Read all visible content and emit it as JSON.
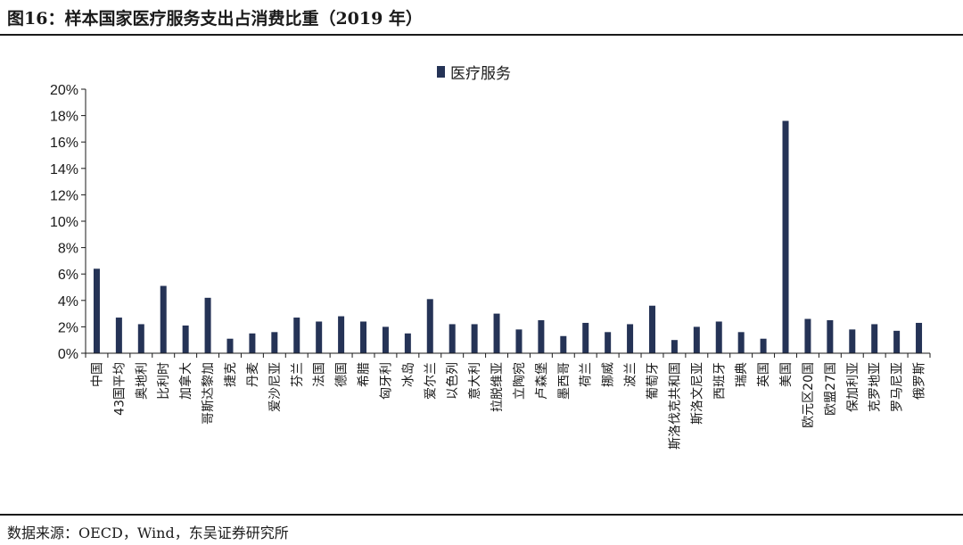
{
  "header": {
    "title": "图16：样本国家医疗服务支出占消费比重（2019 年）"
  },
  "footer": {
    "source": "数据来源：OECD，Wind，东吴证券研究所"
  },
  "colors": {
    "bar": "#253356",
    "axis": "#1a1a1a"
  },
  "chart_data": {
    "type": "bar",
    "title": "",
    "xlabel": "",
    "ylabel": "",
    "ylim": [
      0,
      0.2
    ],
    "yticks": [
      "0%",
      "2%",
      "4%",
      "6%",
      "8%",
      "10%",
      "12%",
      "14%",
      "16%",
      "18%",
      "20%"
    ],
    "grid": false,
    "legend_position": "top-center",
    "categories": [
      "中国",
      "43国平均",
      "奥地利",
      "比利时",
      "加拿大",
      "哥斯达黎加",
      "捷克",
      "丹麦",
      "爱沙尼亚",
      "芬兰",
      "法国",
      "德国",
      "希腊",
      "匈牙利",
      "冰岛",
      "爱尔兰",
      "以色列",
      "意大利",
      "拉脱维亚",
      "立陶宛",
      "卢森堡",
      "墨西哥",
      "荷兰",
      "挪威",
      "波兰",
      "葡萄牙",
      "斯洛伐克共和国",
      "斯洛文尼亚",
      "西班牙",
      "瑞典",
      "英国",
      "美国",
      "欧元区20国",
      "欧盟27国",
      "保加利亚",
      "克罗地亚",
      "罗马尼亚",
      "俄罗斯"
    ],
    "series": [
      {
        "name": "医疗服务",
        "values": [
          0.064,
          0.027,
          0.022,
          0.051,
          0.021,
          0.042,
          0.011,
          0.015,
          0.016,
          0.027,
          0.024,
          0.028,
          0.024,
          0.02,
          0.015,
          0.041,
          0.022,
          0.022,
          0.03,
          0.018,
          0.025,
          0.013,
          0.023,
          0.016,
          0.022,
          0.036,
          0.01,
          0.02,
          0.024,
          0.016,
          0.011,
          0.176,
          0.026,
          0.025,
          0.018,
          0.022,
          0.017,
          0.023
        ]
      }
    ]
  }
}
